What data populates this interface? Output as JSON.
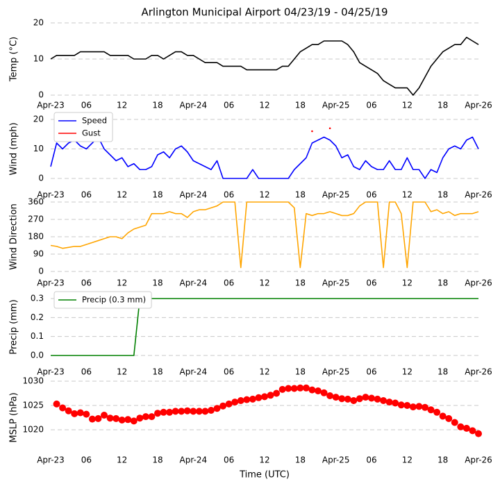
{
  "chart_data": [
    {
      "type": "line",
      "title": "Arlington Municipal Airport 04/23/19 - 04/25/19",
      "ylabel": "Temp (°C)",
      "grid": true,
      "x": [
        0,
        1,
        2,
        3,
        4,
        5,
        6,
        7,
        8,
        9,
        10,
        11,
        12,
        13,
        14,
        15,
        16,
        17,
        18,
        19,
        20,
        21,
        22,
        23,
        24,
        25,
        26,
        27,
        28,
        29,
        30,
        31,
        32,
        33,
        34,
        35,
        36,
        37,
        38,
        39,
        40,
        41,
        42,
        43,
        44,
        45,
        46,
        47,
        48,
        49,
        50,
        51,
        52,
        53,
        54,
        55,
        56,
        57,
        58,
        59,
        60,
        61,
        62,
        63,
        64,
        65,
        66,
        67,
        68,
        69,
        70,
        71,
        72
      ],
      "series": [
        {
          "color": "#000000",
          "values": [
            10,
            11,
            11,
            11,
            11,
            12,
            12,
            12,
            12,
            12,
            11,
            11,
            11,
            11,
            10,
            10,
            10,
            11,
            11,
            10,
            11,
            12,
            12,
            11,
            11,
            10,
            9,
            9,
            9,
            8,
            8,
            8,
            8,
            7,
            7,
            7,
            7,
            7,
            7,
            8,
            8,
            10,
            12,
            13,
            14,
            14,
            15,
            15,
            15,
            15,
            14,
            12,
            9,
            8,
            7,
            6,
            4,
            3,
            2,
            2,
            2,
            0,
            2,
            5,
            8,
            10,
            12,
            13,
            14,
            14,
            16,
            15,
            14
          ]
        }
      ],
      "xlim": [
        0,
        72
      ],
      "xticks": [
        {
          "value": 0,
          "label": "Apr-23"
        },
        {
          "value": 6,
          "label": "06"
        },
        12,
        18,
        {
          "value": 24,
          "label": "Apr-24"
        },
        {
          "value": 30,
          "label": "06"
        },
        {
          "value": 36,
          "label": "12"
        },
        {
          "value": 42,
          "label": "18"
        },
        {
          "value": 48,
          "label": "Apr-25"
        },
        {
          "value": 54,
          "label": "06"
        },
        {
          "value": 60,
          "label": "12"
        },
        {
          "value": 66,
          "label": "18"
        },
        {
          "value": 72,
          "label": "Apr-26"
        }
      ],
      "ylim": [
        0,
        20
      ],
      "yticks": [
        0,
        10,
        20
      ]
    },
    {
      "type": "line",
      "ylabel": "Wind (mph)",
      "grid": true,
      "legend": "upper left",
      "x": [
        0,
        1,
        2,
        3,
        4,
        5,
        6,
        7,
        8,
        9,
        10,
        11,
        12,
        13,
        14,
        15,
        16,
        17,
        18,
        19,
        20,
        21,
        22,
        23,
        24,
        25,
        26,
        27,
        28,
        29,
        30,
        31,
        32,
        33,
        34,
        35,
        36,
        37,
        38,
        39,
        40,
        41,
        42,
        43,
        44,
        45,
        46,
        47,
        48,
        49,
        50,
        51,
        52,
        53,
        54,
        55,
        56,
        57,
        58,
        59,
        60,
        61,
        62,
        63,
        64,
        65,
        66,
        67,
        68,
        69,
        70,
        71,
        72
      ],
      "series": [
        {
          "name": "Speed",
          "color": "#0000ff",
          "values": [
            4,
            12,
            10,
            12,
            13,
            11,
            10,
            12,
            14,
            10,
            8,
            6,
            7,
            4,
            5,
            3,
            3,
            4,
            8,
            9,
            7,
            10,
            11,
            9,
            6,
            5,
            4,
            3,
            6,
            0,
            0,
            0,
            0,
            0,
            3,
            0,
            0,
            0,
            0,
            0,
            0,
            3,
            5,
            7,
            12,
            13,
            14,
            13,
            11,
            7,
            8,
            4,
            3,
            6,
            4,
            3,
            3,
            6,
            3,
            3,
            7,
            3,
            3,
            0,
            3,
            2,
            7,
            10,
            11,
            10,
            13,
            14,
            10
          ]
        },
        {
          "name": "Gust",
          "color": "#ff0000",
          "values": [
            null,
            null,
            null,
            null,
            null,
            null,
            null,
            null,
            null,
            null,
            null,
            null,
            null,
            null,
            null,
            null,
            null,
            null,
            null,
            null,
            null,
            null,
            null,
            null,
            null,
            null,
            null,
            null,
            null,
            null,
            null,
            null,
            null,
            null,
            null,
            null,
            null,
            null,
            null,
            null,
            null,
            null,
            null,
            null,
            16,
            null,
            null,
            17,
            null,
            null,
            null,
            null,
            null,
            null,
            null,
            null,
            null,
            null,
            null,
            null,
            null,
            null,
            null,
            null,
            null,
            null,
            null,
            null,
            null,
            null,
            null,
            null,
            null
          ]
        }
      ],
      "xlim": [
        0,
        72
      ],
      "xticks": [
        {
          "value": 0,
          "label": "Apr-23"
        },
        {
          "value": 6,
          "label": "06"
        },
        12,
        18,
        {
          "value": 24,
          "label": "Apr-24"
        },
        {
          "value": 30,
          "label": "06"
        },
        {
          "value": 36,
          "label": "12"
        },
        {
          "value": 42,
          "label": "18"
        },
        {
          "value": 48,
          "label": "Apr-25"
        },
        {
          "value": 54,
          "label": "06"
        },
        {
          "value": 60,
          "label": "12"
        },
        {
          "value": 66,
          "label": "18"
        },
        {
          "value": 72,
          "label": "Apr-26"
        }
      ],
      "ylim": [
        0,
        20
      ],
      "yticks": [
        0,
        10,
        20
      ]
    },
    {
      "type": "line",
      "ylabel": "Wind Direction",
      "grid": true,
      "x": [
        0,
        1,
        2,
        3,
        4,
        5,
        6,
        7,
        8,
        9,
        10,
        11,
        12,
        13,
        14,
        15,
        16,
        17,
        18,
        19,
        20,
        21,
        22,
        23,
        24,
        25,
        26,
        27,
        28,
        29,
        30,
        31,
        32,
        33,
        34,
        35,
        36,
        37,
        38,
        39,
        40,
        41,
        42,
        43,
        44,
        45,
        46,
        47,
        48,
        49,
        50,
        51,
        52,
        53,
        54,
        55,
        56,
        57,
        58,
        59,
        60,
        61,
        62,
        63,
        64,
        65,
        66,
        67,
        68,
        69,
        70,
        71,
        72
      ],
      "series": [
        {
          "color": "#ffa500",
          "values": [
            135,
            130,
            120,
            125,
            130,
            130,
            140,
            150,
            160,
            170,
            180,
            180,
            170,
            200,
            220,
            230,
            240,
            300,
            300,
            300,
            310,
            300,
            300,
            280,
            310,
            320,
            320,
            330,
            340,
            360,
            360,
            360,
            20,
            360,
            360,
            360,
            360,
            360,
            360,
            360,
            360,
            330,
            20,
            300,
            290,
            300,
            300,
            310,
            300,
            290,
            290,
            300,
            340,
            360,
            360,
            360,
            20,
            360,
            360,
            300,
            20,
            360,
            360,
            360,
            310,
            320,
            300,
            310,
            290,
            300,
            300,
            300,
            310
          ]
        }
      ],
      "xlim": [
        0,
        72
      ],
      "xticks": [
        {
          "value": 0,
          "label": "Apr-23"
        },
        {
          "value": 6,
          "label": "06"
        },
        12,
        18,
        {
          "value": 24,
          "label": "Apr-24"
        },
        {
          "value": 30,
          "label": "06"
        },
        {
          "value": 36,
          "label": "12"
        },
        {
          "value": 42,
          "label": "18"
        },
        {
          "value": 48,
          "label": "Apr-25"
        },
        {
          "value": 54,
          "label": "06"
        },
        {
          "value": 60,
          "label": "12"
        },
        {
          "value": 66,
          "label": "18"
        },
        {
          "value": 72,
          "label": "Apr-26"
        }
      ],
      "ylim": [
        0,
        360
      ],
      "yticks": [
        0,
        90,
        180,
        270,
        360
      ]
    },
    {
      "type": "line",
      "ylabel": "Precip (mm)",
      "grid": true,
      "legend": "upper left",
      "x": [
        0,
        1,
        2,
        3,
        4,
        5,
        6,
        7,
        8,
        9,
        10,
        11,
        12,
        13,
        14,
        15,
        16,
        17,
        18,
        19,
        20,
        21,
        22,
        23,
        24,
        25,
        26,
        27,
        28,
        29,
        30,
        31,
        32,
        33,
        34,
        35,
        36,
        37,
        38,
        39,
        40,
        41,
        42,
        43,
        44,
        45,
        46,
        47,
        48,
        49,
        50,
        51,
        52,
        53,
        54,
        55,
        56,
        57,
        58,
        59,
        60,
        61,
        62,
        63,
        64,
        65,
        66,
        67,
        68,
        69,
        70,
        71,
        72
      ],
      "series": [
        {
          "name": "Precip (0.3 mm)",
          "color": "#008000",
          "values": [
            0,
            0,
            0,
            0,
            0,
            0,
            0,
            0,
            0,
            0,
            0,
            0,
            0,
            0,
            0,
            0.3,
            0.3,
            0.3,
            0.3,
            0.3,
            0.3,
            0.3,
            0.3,
            0.3,
            0.3,
            0.3,
            0.3,
            0.3,
            0.3,
            0.3,
            0.3,
            0.3,
            0.3,
            0.3,
            0.3,
            0.3,
            0.3,
            0.3,
            0.3,
            0.3,
            0.3,
            0.3,
            0.3,
            0.3,
            0.3,
            0.3,
            0.3,
            0.3,
            0.3,
            0.3,
            0.3,
            0.3,
            0.3,
            0.3,
            0.3,
            0.3,
            0.3,
            0.3,
            0.3,
            0.3,
            0.3,
            0.3,
            0.3,
            0.3,
            0.3,
            0.3,
            0.3,
            0.3,
            0.3,
            0.3,
            0.3,
            0.3,
            0.3
          ]
        }
      ],
      "xlim": [
        0,
        72
      ],
      "xticks": [
        {
          "value": 0,
          "label": "Apr-23"
        },
        {
          "value": 6,
          "label": "06"
        },
        12,
        18,
        {
          "value": 24,
          "label": "Apr-24"
        },
        {
          "value": 30,
          "label": "06"
        },
        {
          "value": 36,
          "label": "12"
        },
        {
          "value": 42,
          "label": "18"
        },
        {
          "value": 48,
          "label": "Apr-25"
        },
        {
          "value": 54,
          "label": "06"
        },
        {
          "value": 60,
          "label": "12"
        },
        {
          "value": 66,
          "label": "18"
        },
        {
          "value": 72,
          "label": "Apr-26"
        }
      ],
      "ylim": [
        0,
        0.3
      ],
      "yticks": [
        {
          "value": 0,
          "label": "0.0"
        },
        0.1,
        0.2,
        0.3
      ]
    },
    {
      "type": "scatter",
      "ylabel": "MSLP (hPa)",
      "xlabel": "Time (UTC)",
      "grid": true,
      "x": [
        1,
        2,
        3,
        4,
        5,
        6,
        7,
        8,
        9,
        10,
        11,
        12,
        13,
        14,
        15,
        16,
        17,
        18,
        19,
        20,
        21,
        22,
        23,
        24,
        25,
        26,
        27,
        28,
        29,
        30,
        31,
        32,
        33,
        34,
        35,
        36,
        37,
        38,
        39,
        40,
        41,
        42,
        43,
        44,
        45,
        46,
        47,
        48,
        49,
        50,
        51,
        52,
        53,
        54,
        55,
        56,
        57,
        58,
        59,
        60,
        61,
        62,
        63,
        64,
        65,
        66,
        67,
        68,
        69,
        70,
        71,
        72
      ],
      "series": [
        {
          "color": "#ff0000",
          "values": [
            1025.3,
            1024.5,
            1023.9,
            1023.3,
            1023.5,
            1023.2,
            1022.2,
            1022.3,
            1023.0,
            1022.4,
            1022.3,
            1022.0,
            1022.1,
            1021.8,
            1022.4,
            1022.7,
            1022.7,
            1023.4,
            1023.6,
            1023.6,
            1023.8,
            1023.8,
            1023.9,
            1023.8,
            1023.8,
            1023.8,
            1024.0,
            1024.4,
            1024.9,
            1025.3,
            1025.7,
            1026.0,
            1026.2,
            1026.3,
            1026.6,
            1026.8,
            1027.1,
            1027.5,
            1028.3,
            1028.5,
            1028.5,
            1028.6,
            1028.6,
            1028.2,
            1028.0,
            1027.6,
            1027.0,
            1026.7,
            1026.4,
            1026.3,
            1026.0,
            1026.4,
            1026.7,
            1026.5,
            1026.3,
            1026.0,
            1025.7,
            1025.5,
            1025.1,
            1025.0,
            1024.7,
            1024.8,
            1024.6,
            1024.1,
            1023.6,
            1022.8,
            1022.3,
            1021.5,
            1020.6,
            1020.3,
            1019.8,
            1019.2
          ]
        }
      ],
      "xlim": [
        0,
        72
      ],
      "xticks": [
        {
          "value": 0,
          "label": "Apr-23"
        },
        {
          "value": 6,
          "label": "06"
        },
        12,
        18,
        {
          "value": 24,
          "label": "Apr-24"
        },
        {
          "value": 30,
          "label": "06"
        },
        {
          "value": 36,
          "label": "12"
        },
        {
          "value": 42,
          "label": "18"
        },
        {
          "value": 48,
          "label": "Apr-25"
        },
        {
          "value": 54,
          "label": "06"
        },
        {
          "value": 60,
          "label": "12"
        },
        {
          "value": 66,
          "label": "18"
        },
        {
          "value": 72,
          "label": "Apr-26"
        }
      ],
      "ylim": [
        1015,
        1030
      ],
      "yticks": [
        1020,
        1025,
        1030
      ]
    }
  ]
}
